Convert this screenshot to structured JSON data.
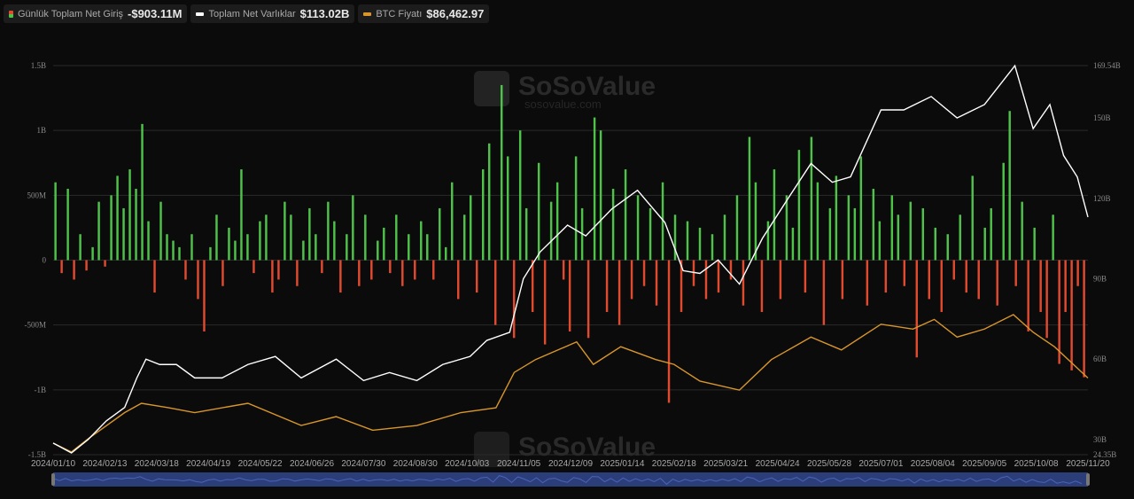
{
  "legend": [
    {
      "label": "Günlük Toplam Net Giriş",
      "value": "-$903.11M"
    },
    {
      "label": "Toplam Net Varlıklar",
      "value": "$113.02B",
      "color": "#ffffff"
    },
    {
      "label": "BTC Fiyatı",
      "value": "$86,462.97",
      "color": "#d9962a"
    }
  ],
  "watermark": {
    "brand": "SoSoValue",
    "url": "sosovalue.com"
  },
  "chart_data": {
    "type": "bar+line",
    "x_start": "2024/01/10",
    "x_end": "2025/11/20",
    "x_days": 680,
    "x_ticks": [
      "2024/01/10",
      "2024/02/13",
      "2024/03/18",
      "2024/04/19",
      "2024/05/22",
      "2024/06/26",
      "2024/07/30",
      "2024/08/30",
      "2024/10/03",
      "2024/11/05",
      "2024/12/09",
      "2025/01/14",
      "2025/02/18",
      "2025/03/21",
      "2025/04/24",
      "2025/05/28",
      "2025/07/01",
      "2025/08/04",
      "2025/09/05",
      "2025/10/08",
      "2025/11/20"
    ],
    "left_axis": {
      "ticks": [
        "1.5B",
        "1B",
        "500M",
        "0",
        "-500M",
        "-1B",
        "-1.5B"
      ],
      "range_millions": [
        -1500,
        1500
      ]
    },
    "right_axis": {
      "ticks": [
        "169.54B",
        "150B",
        "120B",
        "90B",
        "60B",
        "30B",
        "24.35B"
      ],
      "tick_values": [
        169.54,
        150,
        120,
        90,
        60,
        30,
        24.35
      ],
      "range_billions": [
        24.35,
        169.54
      ]
    },
    "price_range_usd": [
      38800,
      281000
    ],
    "colors": {
      "inflow": "#4fc24a",
      "outflow": "#e04a2f",
      "assets": "#ffffff",
      "btc": "#d9962a",
      "grid": "#2a2a2a"
    },
    "daily_net_inflow_millions": [
      600,
      -100,
      550,
      -150,
      200,
      -80,
      100,
      450,
      -50,
      500,
      650,
      400,
      700,
      550,
      1050,
      300,
      -250,
      450,
      200,
      150,
      100,
      -150,
      200,
      -300,
      -550,
      100,
      350,
      -200,
      250,
      150,
      700,
      200,
      -100,
      300,
      350,
      -250,
      -150,
      450,
      350,
      -200,
      150,
      400,
      200,
      -100,
      450,
      300,
      -250,
      200,
      500,
      -200,
      350,
      -150,
      150,
      250,
      -100,
      350,
      -200,
      200,
      -150,
      300,
      200,
      -150,
      400,
      100,
      600,
      -300,
      350,
      500,
      -250,
      700,
      900,
      -500,
      1350,
      800,
      -600,
      1000,
      400,
      -400,
      750,
      -650,
      450,
      600,
      -150,
      -550,
      800,
      400,
      -600,
      1100,
      1000,
      -400,
      550,
      -500,
      700,
      -300,
      500,
      -200,
      400,
      -350,
      600,
      -1100,
      350,
      -400,
      300,
      -200,
      250,
      -300,
      200,
      -250,
      350,
      -150,
      500,
      -350,
      950,
      600,
      -400,
      300,
      700,
      -300,
      500,
      250,
      850,
      -250,
      950,
      600,
      -500,
      400,
      650,
      -300,
      500,
      400,
      800,
      -350,
      550,
      300,
      -250,
      500,
      350,
      -200,
      450,
      -750,
      400,
      -300,
      250,
      -400,
      200,
      -150,
      350,
      -250,
      650,
      -300,
      250,
      400,
      -350,
      750,
      1150,
      -200,
      450,
      -550,
      250,
      -400,
      -600,
      350,
      -800,
      -400,
      -850,
      -200,
      -903
    ],
    "total_net_assets_billions": [
      [
        0,
        28.7
      ],
      [
        12,
        25
      ],
      [
        23,
        30
      ],
      [
        35,
        37
      ],
      [
        47,
        42
      ],
      [
        55,
        53
      ],
      [
        61,
        60
      ],
      [
        70,
        58
      ],
      [
        81,
        58
      ],
      [
        93,
        53
      ],
      [
        111,
        53
      ],
      [
        128,
        58
      ],
      [
        146,
        61
      ],
      [
        163,
        53
      ],
      [
        186,
        60
      ],
      [
        204,
        52
      ],
      [
        221,
        55
      ],
      [
        239,
        52
      ],
      [
        256,
        58
      ],
      [
        274,
        61
      ],
      [
        285,
        67
      ],
      [
        300,
        70
      ],
      [
        309,
        90
      ],
      [
        320,
        100
      ],
      [
        338,
        110
      ],
      [
        350,
        106
      ],
      [
        367,
        116
      ],
      [
        384,
        123
      ],
      [
        402,
        111
      ],
      [
        414,
        93
      ],
      [
        425,
        92
      ],
      [
        437,
        97
      ],
      [
        451,
        88
      ],
      [
        466,
        105
      ],
      [
        483,
        120
      ],
      [
        498,
        133
      ],
      [
        512,
        126
      ],
      [
        524,
        128
      ],
      [
        544,
        153
      ],
      [
        559,
        153
      ],
      [
        577,
        158
      ],
      [
        594,
        150
      ],
      [
        612,
        155
      ],
      [
        632,
        169.5
      ],
      [
        644,
        146
      ],
      [
        655,
        155
      ],
      [
        664,
        136
      ],
      [
        673,
        128
      ],
      [
        680,
        113
      ]
    ],
    "btc_price_usd": [
      [
        0,
        46000
      ],
      [
        12,
        40500
      ],
      [
        23,
        48700
      ],
      [
        47,
        65000
      ],
      [
        58,
        70800
      ],
      [
        76,
        68000
      ],
      [
        93,
        65000
      ],
      [
        128,
        70800
      ],
      [
        163,
        57000
      ],
      [
        186,
        62500
      ],
      [
        210,
        54000
      ],
      [
        239,
        57000
      ],
      [
        268,
        65000
      ],
      [
        291,
        68000
      ],
      [
        303,
        90000
      ],
      [
        317,
        98000
      ],
      [
        344,
        109000
      ],
      [
        355,
        95000
      ],
      [
        373,
        106000
      ],
      [
        396,
        98000
      ],
      [
        408,
        95000
      ],
      [
        425,
        84600
      ],
      [
        451,
        79000
      ],
      [
        472,
        98000
      ],
      [
        498,
        112000
      ],
      [
        518,
        104000
      ],
      [
        544,
        120000
      ],
      [
        565,
        117000
      ],
      [
        579,
        123000
      ],
      [
        594,
        112000
      ],
      [
        612,
        117000
      ],
      [
        631,
        126000
      ],
      [
        644,
        115000
      ],
      [
        658,
        106000
      ],
      [
        680,
        86500
      ]
    ]
  }
}
